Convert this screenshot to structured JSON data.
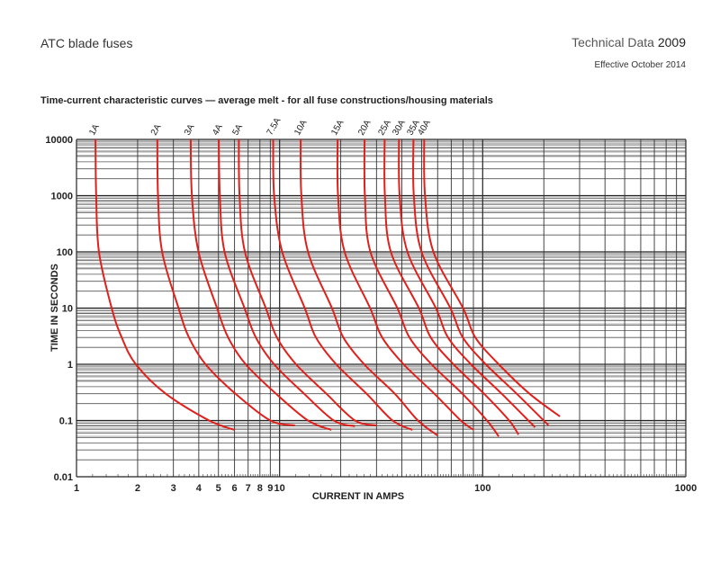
{
  "header": {
    "doc_title": "ATC blade fuses",
    "tech_label": "Technical Data",
    "tech_number": "2009",
    "effective": "Effective October 2014"
  },
  "chart_data": {
    "type": "line",
    "title": "Time-current characteristic curves — average melt - for all fuse constructions/housing materials",
    "xlabel": "CURRENT IN AMPS",
    "ylabel": "TIME IN SECONDS",
    "xscale": "log",
    "yscale": "log",
    "xlim": [
      1,
      1000
    ],
    "ylim": [
      0.01,
      10000
    ],
    "grid": true,
    "line_color": "#e0201b",
    "x_tick_labels": [
      "1",
      "2",
      "3",
      "4",
      "5",
      "6",
      "7",
      "8",
      "9",
      "10",
      "100",
      "1000"
    ],
    "x_tick_values": [
      1,
      2,
      3,
      4,
      5,
      6,
      7,
      8,
      9,
      10,
      100,
      1000
    ],
    "y_tick_labels": [
      "10000",
      "1000",
      "100",
      "10",
      "1",
      "0.1",
      "0.01"
    ],
    "y_tick_values": [
      10000,
      1000,
      100,
      10,
      1,
      0.1,
      0.01
    ],
    "series": [
      {
        "name": "1A",
        "points": [
          [
            1.24,
            10000
          ],
          [
            1.25,
            1000
          ],
          [
            1.29,
            100
          ],
          [
            1.49,
            10
          ],
          [
            1.67,
            3
          ],
          [
            1.96,
            1
          ],
          [
            2.75,
            0.3
          ],
          [
            4.5,
            0.1
          ],
          [
            6.0,
            0.068
          ]
        ]
      },
      {
        "name": "2A",
        "points": [
          [
            2.5,
            10000
          ],
          [
            2.52,
            1000
          ],
          [
            2.64,
            100
          ],
          [
            3.18,
            10
          ],
          [
            3.58,
            3
          ],
          [
            4.32,
            1
          ],
          [
            6.06,
            0.3
          ],
          [
            9.0,
            0.1
          ],
          [
            11.9,
            0.082
          ]
        ]
      },
      {
        "name": "3A",
        "points": [
          [
            3.65,
            10000
          ],
          [
            3.7,
            1000
          ],
          [
            3.99,
            100
          ],
          [
            4.92,
            10
          ],
          [
            5.58,
            3
          ],
          [
            6.81,
            1
          ],
          [
            9.6,
            0.3
          ],
          [
            13.8,
            0.1
          ],
          [
            18.0,
            0.068
          ]
        ]
      },
      {
        "name": "4A",
        "points": [
          [
            5.02,
            10000
          ],
          [
            5.08,
            1000
          ],
          [
            5.36,
            100
          ],
          [
            6.72,
            10
          ],
          [
            7.64,
            3
          ],
          [
            9.4,
            1
          ],
          [
            13.2,
            0.3
          ],
          [
            18.5,
            0.1
          ],
          [
            23.5,
            0.079
          ]
        ]
      },
      {
        "name": "5A",
        "points": [
          [
            6.3,
            10000
          ],
          [
            6.35,
            1000
          ],
          [
            6.75,
            100
          ],
          [
            8.55,
            10
          ],
          [
            9.7,
            3
          ],
          [
            12.05,
            1
          ],
          [
            17.0,
            0.3
          ],
          [
            23.5,
            0.1
          ],
          [
            30.0,
            0.082
          ]
        ]
      },
      {
        "name": "7.5A",
        "points": [
          [
            9.3,
            10000
          ],
          [
            9.4,
            1000
          ],
          [
            10.3,
            100
          ],
          [
            13.3,
            10
          ],
          [
            15.1,
            3
          ],
          [
            19.0,
            1
          ],
          [
            26.8,
            0.3
          ],
          [
            36,
            0.1
          ],
          [
            45.1,
            0.068
          ]
        ]
      },
      {
        "name": "10A",
        "points": [
          [
            12.7,
            10000
          ],
          [
            12.8,
            1000
          ],
          [
            13.8,
            100
          ],
          [
            18.1,
            10
          ],
          [
            20.6,
            3
          ],
          [
            26.1,
            1
          ],
          [
            36.9,
            0.3
          ],
          [
            48,
            0.1
          ],
          [
            60,
            0.054
          ]
        ]
      },
      {
        "name": "15A",
        "points": [
          [
            19.3,
            10000
          ],
          [
            19.4,
            1000
          ],
          [
            20.9,
            100
          ],
          [
            27.9,
            10
          ],
          [
            32,
            3
          ],
          [
            40.8,
            1
          ],
          [
            57.8,
            0.3
          ],
          [
            78,
            0.1
          ],
          [
            90.3,
            0.068
          ]
        ]
      },
      {
        "name": "20A",
        "points": [
          [
            26.2,
            10000
          ],
          [
            26.3,
            1000
          ],
          [
            28,
            100
          ],
          [
            38,
            10
          ],
          [
            43.6,
            3
          ],
          [
            56,
            1
          ],
          [
            79.4,
            0.3
          ],
          [
            105,
            0.1
          ],
          [
            120,
            0.052
          ]
        ]
      },
      {
        "name": "25A",
        "points": [
          [
            32.9,
            10000
          ],
          [
            33,
            1000
          ],
          [
            35.3,
            100
          ],
          [
            48.5,
            10
          ],
          [
            55.5,
            3
          ],
          [
            71.8,
            1
          ],
          [
            101.5,
            0.3
          ],
          [
            135,
            0.1
          ],
          [
            150,
            0.056
          ]
        ]
      },
      {
        "name": "30A",
        "points": [
          [
            38.7,
            10000
          ],
          [
            39,
            1000
          ],
          [
            42.6,
            100
          ],
          [
            58.8,
            10
          ],
          [
            67.5,
            3
          ],
          [
            87.6,
            1
          ],
          [
            124,
            0.3
          ],
          [
            181,
            0.076
          ]
        ]
      },
      {
        "name": "35A",
        "points": [
          [
            45.6,
            10000
          ],
          [
            45.8,
            1000
          ],
          [
            50,
            100
          ],
          [
            69.3,
            10
          ],
          [
            79.8,
            3
          ],
          [
            103.6,
            1
          ],
          [
            147,
            0.3
          ],
          [
            211,
            0.082
          ]
        ]
      },
      {
        "name": "40A",
        "points": [
          [
            51.5,
            10000
          ],
          [
            52,
            1000
          ],
          [
            57.2,
            100
          ],
          [
            80,
            10
          ],
          [
            92,
            3
          ],
          [
            120,
            1
          ],
          [
            170,
            0.3
          ],
          [
            240,
            0.118
          ]
        ]
      }
    ]
  }
}
